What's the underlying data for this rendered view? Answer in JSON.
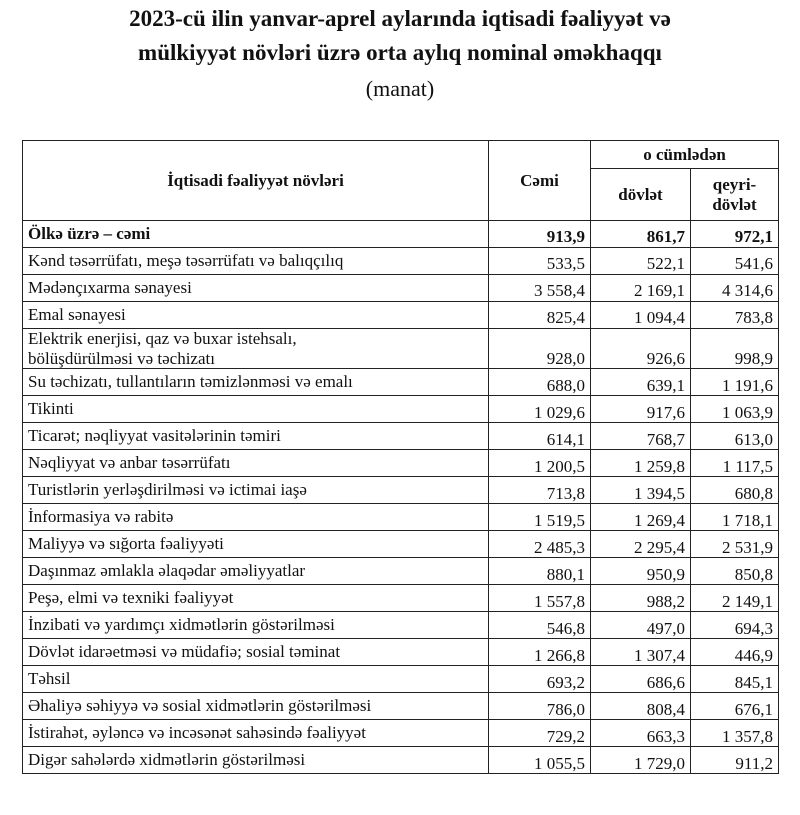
{
  "header": {
    "title_lines": [
      "2023-cü ilin yanvar-aprel aylarında iqtisadi fəaliyyət və",
      "mülkiyyət növləri üzrə orta aylıq nominal əməkhaqqı"
    ],
    "unit": "(manat)"
  },
  "table": {
    "columns": {
      "activity": "İqtisadi fəaliyyət növləri",
      "total": "Cəmi",
      "group": "o cümlədən",
      "state": "dövlət",
      "nonstate": "qeyri-\ndövlət"
    },
    "rows": [
      [
        "Ölkə üzrə – cəmi",
        "913,9",
        "861,7",
        "972,1"
      ],
      [
        "Kənd təsərrüfatı, meşə təsərrüfatı və balıqçılıq",
        "533,5",
        "522,1",
        "541,6"
      ],
      [
        "Mədənçıxarma sənayesi",
        "3 558,4",
        "2 169,1",
        "4 314,6"
      ],
      [
        "Emal sənayesi",
        "825,4",
        "1 094,4",
        "783,8"
      ],
      [
        "Elektrik enerjisi, qaz və buxar istehsalı,\nbölüşdürülməsi və təchizatı",
        "928,0",
        "926,6",
        "998,9"
      ],
      [
        "Su təchizatı, tullantıların təmizlənməsi və emalı",
        "688,0",
        "639,1",
        "1 191,6"
      ],
      [
        "Tikinti",
        "1 029,6",
        "917,6",
        "1 063,9"
      ],
      [
        "Ticarət; nəqliyyat vasitələrinin təmiri",
        "614,1",
        "768,7",
        "613,0"
      ],
      [
        "Nəqliyyat və anbar təsərrüfatı",
        "1 200,5",
        "1 259,8",
        "1 117,5"
      ],
      [
        "Turistlərin yerləşdirilməsi və ictimai iaşə",
        "713,8",
        "1 394,5",
        "680,8"
      ],
      [
        "İnformasiya və rabitə",
        "1 519,5",
        "1 269,4",
        "1 718,1"
      ],
      [
        "Maliyyə və sığorta fəaliyyəti",
        "2 485,3",
        "2 295,4",
        "2 531,9"
      ],
      [
        "Daşınmaz əmlakla əlaqədar əməliyyatlar",
        "880,1",
        "950,9",
        "850,8"
      ],
      [
        "Peşə, elmi və texniki fəaliyyət",
        "1 557,8",
        "988,2",
        "2 149,1"
      ],
      [
        "İnzibati və yardımçı xidmətlərin göstərilməsi",
        "546,8",
        "497,0",
        "694,3"
      ],
      [
        "Dövlət idarəetməsi və müdafiə; sosial təminat",
        "1 266,8",
        "1 307,4",
        "446,9"
      ],
      [
        "Təhsil",
        "693,2",
        "686,6",
        "845,1"
      ],
      [
        "Əhaliyə səhiyyə və sosial xidmətlərin göstərilməsi",
        "786,0",
        "808,4",
        "676,1"
      ],
      [
        "İstirahət, əyləncə və incəsənət sahəsində fəaliyyət",
        "729,2",
        "663,3",
        "1 357,8"
      ],
      [
        "Digər sahələrdə xidmətlərin göstərilməsi",
        "1 055,5",
        "1 729,0",
        "911,2"
      ]
    ]
  }
}
